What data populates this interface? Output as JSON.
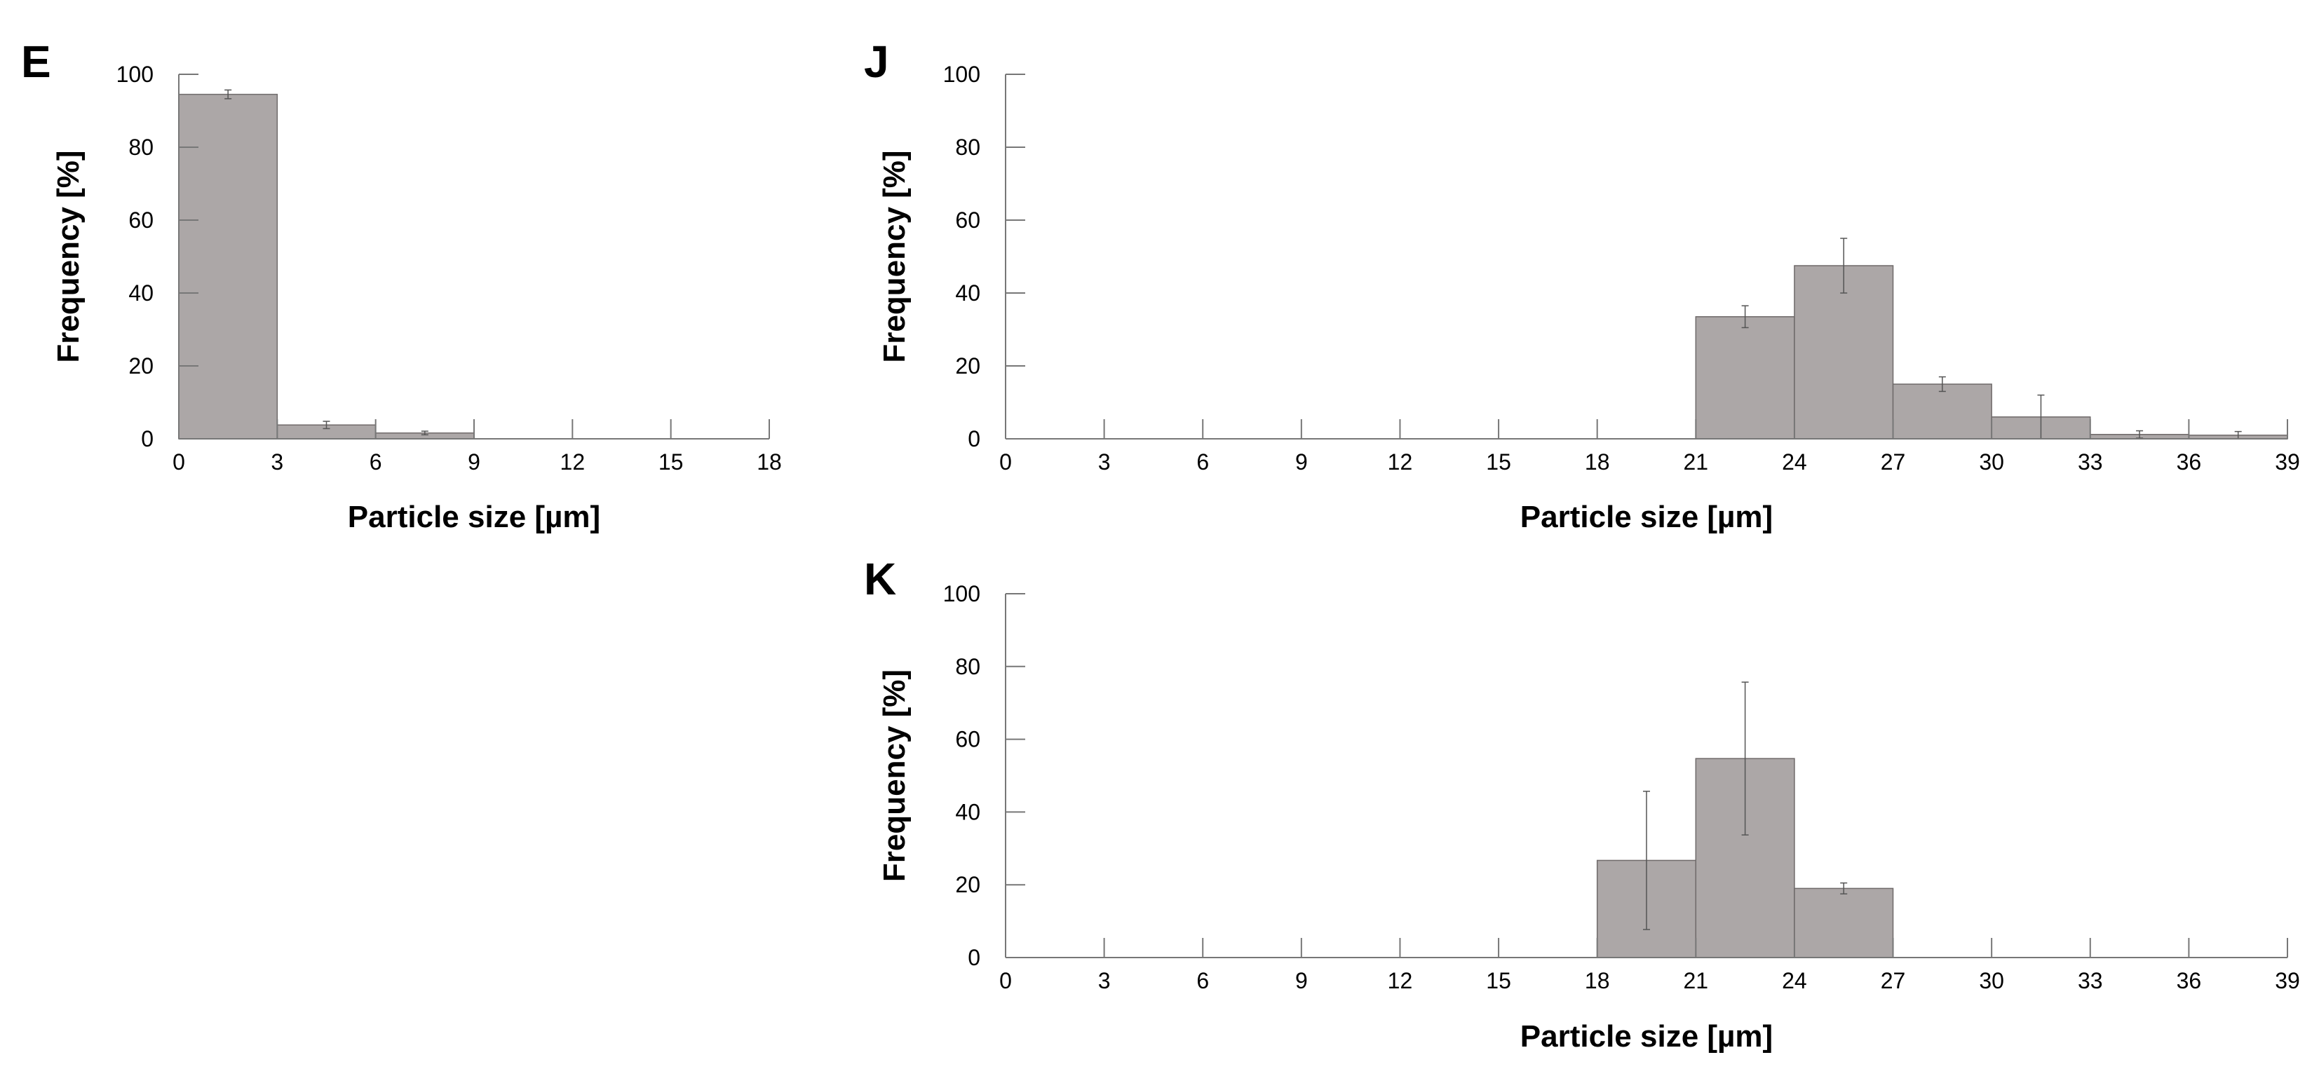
{
  "chart_data": [
    {
      "panel_label": "E",
      "type": "bar",
      "bin_edges": [
        0,
        3,
        6,
        9,
        12,
        15,
        18
      ],
      "x_ticks": [
        0,
        3,
        6,
        9,
        12,
        15,
        18
      ],
      "values": [
        94.5,
        3.8,
        1.6,
        0,
        0,
        0
      ],
      "errors": [
        1.2,
        1.0,
        0.5,
        0,
        0,
        0
      ],
      "xlabel": "Particle size [µm]",
      "ylabel": "Frequency [%]",
      "ylim": [
        0,
        100
      ],
      "y_ticks": [
        0,
        20,
        40,
        60,
        80,
        100
      ],
      "bar_color": "#aca7a7"
    },
    {
      "panel_label": "J",
      "type": "bar",
      "bin_edges": [
        0,
        3,
        6,
        9,
        12,
        15,
        18,
        21,
        24,
        27,
        30,
        33,
        36,
        39
      ],
      "x_ticks": [
        0,
        3,
        6,
        9,
        12,
        15,
        18,
        21,
        24,
        27,
        30,
        33,
        36,
        39
      ],
      "values": [
        0,
        0,
        0,
        0,
        0,
        0,
        0,
        33.5,
        47.5,
        15,
        6,
        1.2,
        1.0
      ],
      "errors": [
        0,
        0,
        0,
        0,
        0,
        0,
        0,
        3,
        7.5,
        2,
        6,
        1,
        1
      ],
      "xlabel": "Particle size [µm]",
      "ylabel": "Frequency [%]",
      "ylim": [
        0,
        100
      ],
      "y_ticks": [
        0,
        20,
        40,
        60,
        80,
        100
      ],
      "bar_color": "#aca7a7"
    },
    {
      "panel_label": "K",
      "type": "bar",
      "bin_edges": [
        0,
        3,
        6,
        9,
        12,
        15,
        18,
        21,
        24,
        27,
        30,
        33,
        36,
        39
      ],
      "x_ticks": [
        0,
        3,
        6,
        9,
        12,
        15,
        18,
        21,
        24,
        27,
        30,
        33,
        36,
        39
      ],
      "values": [
        0,
        0,
        0,
        0,
        0,
        0,
        26.7,
        54.7,
        19,
        0,
        0,
        0,
        0
      ],
      "errors": [
        0,
        0,
        0,
        0,
        0,
        0,
        19,
        21,
        1.5,
        0,
        0,
        0,
        0
      ],
      "xlabel": "Particle size [µm]",
      "ylabel": "Frequency [%]",
      "ylim": [
        0,
        100
      ],
      "y_ticks": [
        0,
        20,
        40,
        60,
        80,
        100
      ],
      "bar_color": "#aca7a7"
    }
  ]
}
